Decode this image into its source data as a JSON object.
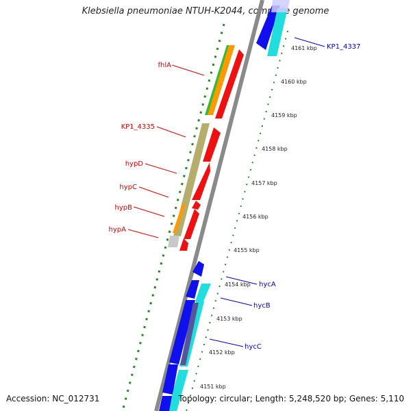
{
  "title": "Klebsiella pneumoniae NTUH-K2044, complete genome",
  "footer": {
    "accession": "Accession: NC_012731",
    "topology": "Topology: circular; Length: 5,248,520 bp; Genes: 5,110"
  },
  "colors": {
    "backbone": "#8a8a8a",
    "forward_label": "#dd0000",
    "reverse_label": "#0000cc",
    "dots": "#228822"
  },
  "ticks": [
    "4161 kbp",
    "4160 kbp",
    "4159 kbp",
    "4158 kbp",
    "4157 kbp",
    "4156 kbp",
    "4155 kbp",
    "4154 kbp",
    "4153 kbp",
    "4152 kbp",
    "4151 kbp"
  ],
  "forward_genes": [
    "fhlA",
    "KP1_4335",
    "hypD",
    "hypC",
    "hypB",
    "hypA"
  ],
  "reverse_genes": [
    "KP1_4337",
    "hycA",
    "hycB",
    "hycC"
  ]
}
